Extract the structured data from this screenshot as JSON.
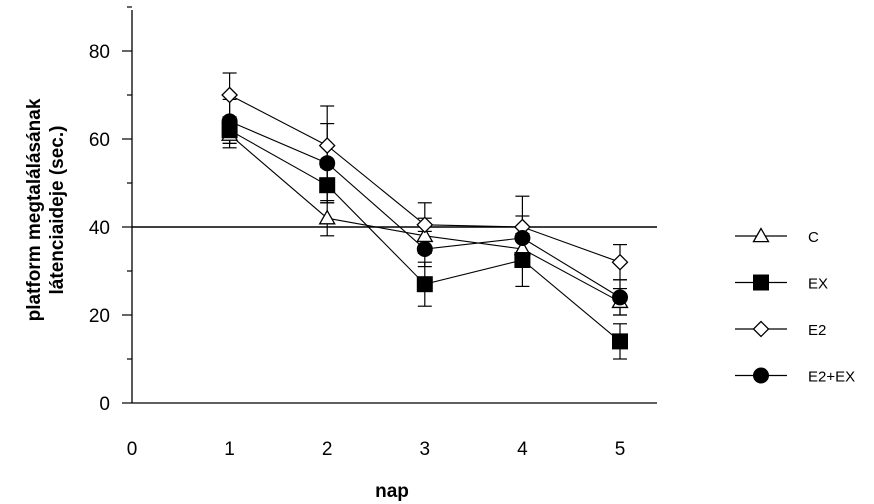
{
  "chart_data": {
    "type": "line",
    "xlabel": "nap",
    "ylabel_line1": "platform megtalálásának",
    "ylabel_line2": "látenciaideje (sec.)",
    "xlim": [
      0,
      5.5
    ],
    "ylim": [
      0,
      90
    ],
    "x_ticks": [
      "0",
      "1",
      "2",
      "3",
      "4",
      "5"
    ],
    "y_ticks": [
      "0",
      "20",
      "40",
      "60",
      "80"
    ],
    "x": [
      1,
      2,
      3,
      4,
      5
    ],
    "reference_line_y": 40,
    "legend_position": "right",
    "series": [
      {
        "name": "C",
        "marker": "triangle-open",
        "values": [
          61,
          42,
          38,
          35,
          23
        ],
        "errors": [
          3,
          4,
          4,
          3,
          3
        ]
      },
      {
        "name": "EX",
        "marker": "square-filled",
        "values": [
          62,
          49.5,
          27,
          32.5,
          14
        ],
        "errors": [
          3,
          4,
          5,
          6,
          4
        ]
      },
      {
        "name": "E2",
        "marker": "diamond-open",
        "values": [
          70,
          58.5,
          40.5,
          40,
          32
        ],
        "errors": [
          5,
          9,
          5,
          7,
          4
        ]
      },
      {
        "name": "E2+EX",
        "marker": "circle-filled",
        "values": [
          64,
          54.5,
          35,
          37.5,
          24
        ],
        "errors": [
          5,
          9,
          4,
          5,
          4
        ]
      }
    ]
  }
}
